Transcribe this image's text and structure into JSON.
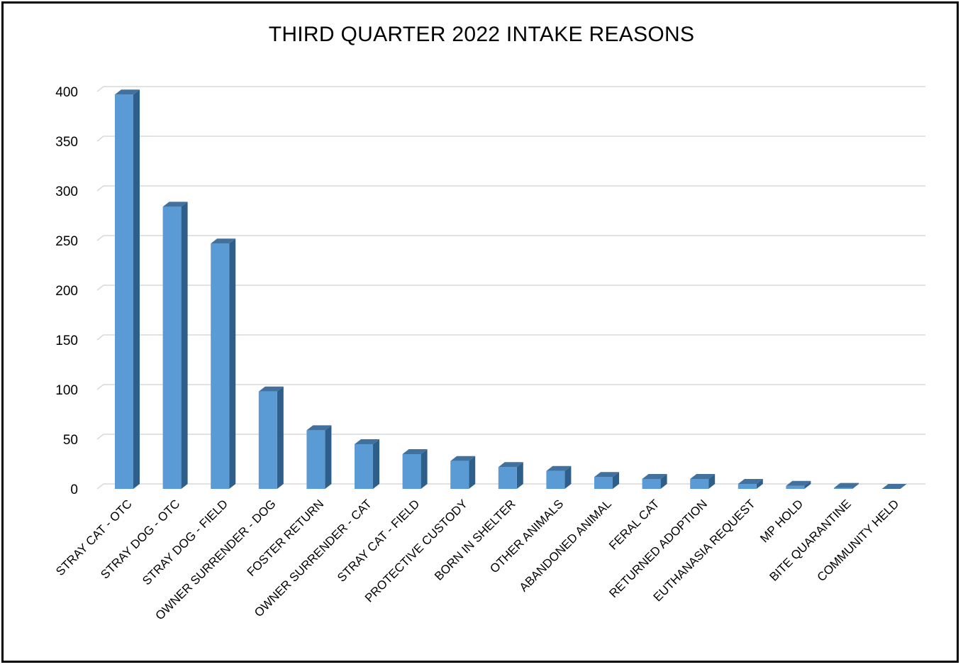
{
  "chart_data": {
    "type": "bar",
    "title": "THIRD QUARTER 2022 INTAKE REASONS",
    "xlabel": "",
    "ylabel": "",
    "ylim": [
      0,
      400
    ],
    "yticks": [
      0,
      50,
      100,
      150,
      200,
      250,
      300,
      350,
      400
    ],
    "grid": true,
    "categories": [
      "STRAY CAT - OTC",
      "STRAY DOG - OTC",
      "STRAY DOG - FIELD",
      "OWNER SURRENDER - DOG",
      "FOSTER RETURN",
      "OWNER SURRENDER - CAT",
      "STRAY CAT - FIELD",
      "PROTECTIVE CUSTODY",
      "BORN IN SHELTER",
      "OTHER ANIMALS",
      "ABANDONED ANIMAL",
      "FERAL CAT",
      "RETURNED ADOPTION",
      "EUTHANASIA REQUEST",
      "MP HOLD",
      "BITE QUARANTINE",
      "COMMUNITY HELD"
    ],
    "values": [
      397,
      284,
      247,
      98,
      59,
      45,
      35,
      28,
      22,
      18,
      12,
      10,
      10,
      5,
      3,
      1,
      0
    ],
    "colors": {
      "bar_front": "#5b9bd5",
      "bar_side": "#2e5f8a",
      "bar_top": "#41719c",
      "grid": "#d9d9d9"
    }
  }
}
